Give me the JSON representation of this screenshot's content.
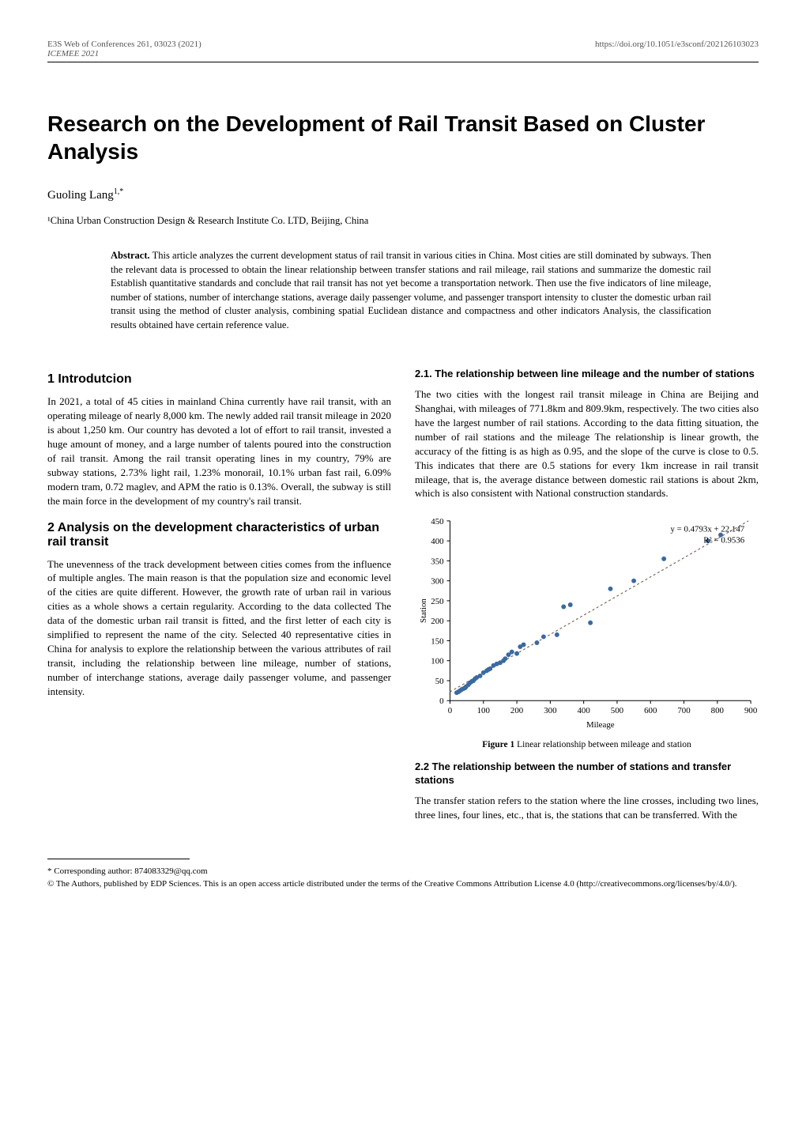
{
  "header": {
    "journal_line": "E3S Web of Conferences 261, 03023 (2021)",
    "conf_line": "ICEMEE 2021",
    "doi": "https://doi.org/10.1051/e3sconf/202126103023"
  },
  "title": "Research on the Development of Rail Transit Based on Cluster Analysis",
  "author": {
    "name": "Guoling Lang",
    "sup": "1,*"
  },
  "affiliation": "¹China Urban Construction Design & Research Institute Co. LTD, Beijing, China",
  "abstract": {
    "label": "Abstract.",
    "text": "This article analyzes the current development status of rail transit in various cities in China. Most cities are still dominated by subways. Then the relevant data is processed to obtain the linear relationship between transfer stations and rail mileage, rail stations and summarize the domestic rail Establish quantitative standards and conclude that rail transit has not yet become a transportation network. Then use the five indicators of line mileage, number of stations, number of interchange stations, average daily passenger volume, and passenger transport intensity to cluster the domestic urban rail transit using the method of cluster analysis, combining spatial Euclidean distance and compactness and other indicators Analysis, the classification results obtained have certain reference value."
  },
  "sections": {
    "s1": {
      "heading": "1 Introdutcion",
      "p1": "In 2021, a total of 45 cities in mainland China currently have rail transit, with an operating mileage of nearly 8,000 km. The newly added rail transit mileage in 2020 is about 1,250 km. Our country has devoted a lot of effort to rail transit, invested a huge amount of money, and a large number of talents poured into the construction of rail transit. Among the rail transit operating lines in my country, 79% are subway stations, 2.73% light rail, 1.23% monorail, 10.1% urban fast rail, 6.09% modern tram, 0.72 maglev, and APM the ratio is 0.13%. Overall, the subway is still the main force in the development of my country's rail transit."
    },
    "s2": {
      "heading": "2 Analysis on the development characteristics of urban rail transit",
      "p1": "The unevenness of the track development between cities comes from the influence of multiple angles. The main reason is that the population size and economic level of the cities are quite different. However, the growth rate of urban rail in various cities as a whole shows a certain regularity. According to the data collected The data of the domestic urban rail transit is fitted, and the first letter of each city is simplified to represent the name of the city. Selected 40 representative cities in China for analysis to explore the relationship between the various attributes of rail transit, including the relationship between line mileage, number of stations, number of interchange stations, average daily passenger volume, and passenger intensity."
    },
    "s21": {
      "heading": "2.1. The relationship between line mileage and the number of stations",
      "p1": "The two cities with the longest rail transit mileage in China are Beijing and Shanghai, with mileages of 771.8km and 809.9km, respectively. The two cities also have the largest number of rail stations. According to the data fitting situation, the number of rail stations and the mileage The relationship is linear growth, the accuracy of the fitting is as high as 0.95, and the slope of the curve is close to 0.5. This indicates that there are 0.5 stations for every 1km increase in rail transit mileage, that is, the average distance between domestic rail stations is about 2km, which is also consistent with National construction standards."
    },
    "s22": {
      "heading": "2.2 The relationship between the number of stations and transfer stations",
      "p1": "The transfer station refers to the station where the line crosses, including two lines, three lines, four lines, etc., that is, the stations that can be transferred. With the"
    }
  },
  "figure1": {
    "caption_label": "Figure 1",
    "caption_text": "Linear relationship between mileage and station",
    "type": "scatter-with-fit",
    "xlabel": "Mileage",
    "ylabel": "Station",
    "xlim": [
      0,
      900
    ],
    "ylim": [
      0,
      450
    ],
    "xtick_step": 100,
    "ytick_step": 50,
    "xticks": [
      0,
      100,
      200,
      300,
      400,
      500,
      600,
      700,
      800,
      900
    ],
    "yticks": [
      0,
      50,
      100,
      150,
      200,
      250,
      300,
      350,
      400,
      450
    ],
    "equation": "y = 0.4793x + 22.147",
    "r2": "R² = 0.9536",
    "fit_line": {
      "x0": 0,
      "y0": 22.147,
      "x1": 900,
      "y1": 453.52
    },
    "fit_color": "#7a6a58",
    "fit_dash": "3,3",
    "point_color": "#3a6aa0",
    "point_radius": 3,
    "axis_color": "#000000",
    "background_color": "#ffffff",
    "label_fontsize": 11,
    "points": [
      {
        "x": 20,
        "y": 20
      },
      {
        "x": 25,
        "y": 22
      },
      {
        "x": 30,
        "y": 25
      },
      {
        "x": 35,
        "y": 28
      },
      {
        "x": 40,
        "y": 30
      },
      {
        "x": 45,
        "y": 32
      },
      {
        "x": 48,
        "y": 35
      },
      {
        "x": 55,
        "y": 40
      },
      {
        "x": 60,
        "y": 45
      },
      {
        "x": 65,
        "y": 48
      },
      {
        "x": 70,
        "y": 50
      },
      {
        "x": 75,
        "y": 55
      },
      {
        "x": 80,
        "y": 58
      },
      {
        "x": 90,
        "y": 62
      },
      {
        "x": 100,
        "y": 70
      },
      {
        "x": 110,
        "y": 75
      },
      {
        "x": 115,
        "y": 78
      },
      {
        "x": 120,
        "y": 80
      },
      {
        "x": 130,
        "y": 88
      },
      {
        "x": 140,
        "y": 92
      },
      {
        "x": 150,
        "y": 95
      },
      {
        "x": 160,
        "y": 100
      },
      {
        "x": 165,
        "y": 105
      },
      {
        "x": 175,
        "y": 115
      },
      {
        "x": 185,
        "y": 122
      },
      {
        "x": 200,
        "y": 118
      },
      {
        "x": 210,
        "y": 135
      },
      {
        "x": 220,
        "y": 140
      },
      {
        "x": 260,
        "y": 145
      },
      {
        "x": 280,
        "y": 160
      },
      {
        "x": 320,
        "y": 165
      },
      {
        "x": 340,
        "y": 235
      },
      {
        "x": 360,
        "y": 240
      },
      {
        "x": 420,
        "y": 195
      },
      {
        "x": 480,
        "y": 280
      },
      {
        "x": 550,
        "y": 300
      },
      {
        "x": 640,
        "y": 355
      },
      {
        "x": 772,
        "y": 400
      },
      {
        "x": 810,
        "y": 415
      }
    ]
  },
  "footnote": {
    "corresponding": "* Corresponding author: 874083329@qq.com",
    "license": "© The Authors, published by EDP Sciences. This is an open access article distributed under the terms of the Creative Commons Attribution License 4.0 (http://creativecommons.org/licenses/by/4.0/)."
  }
}
